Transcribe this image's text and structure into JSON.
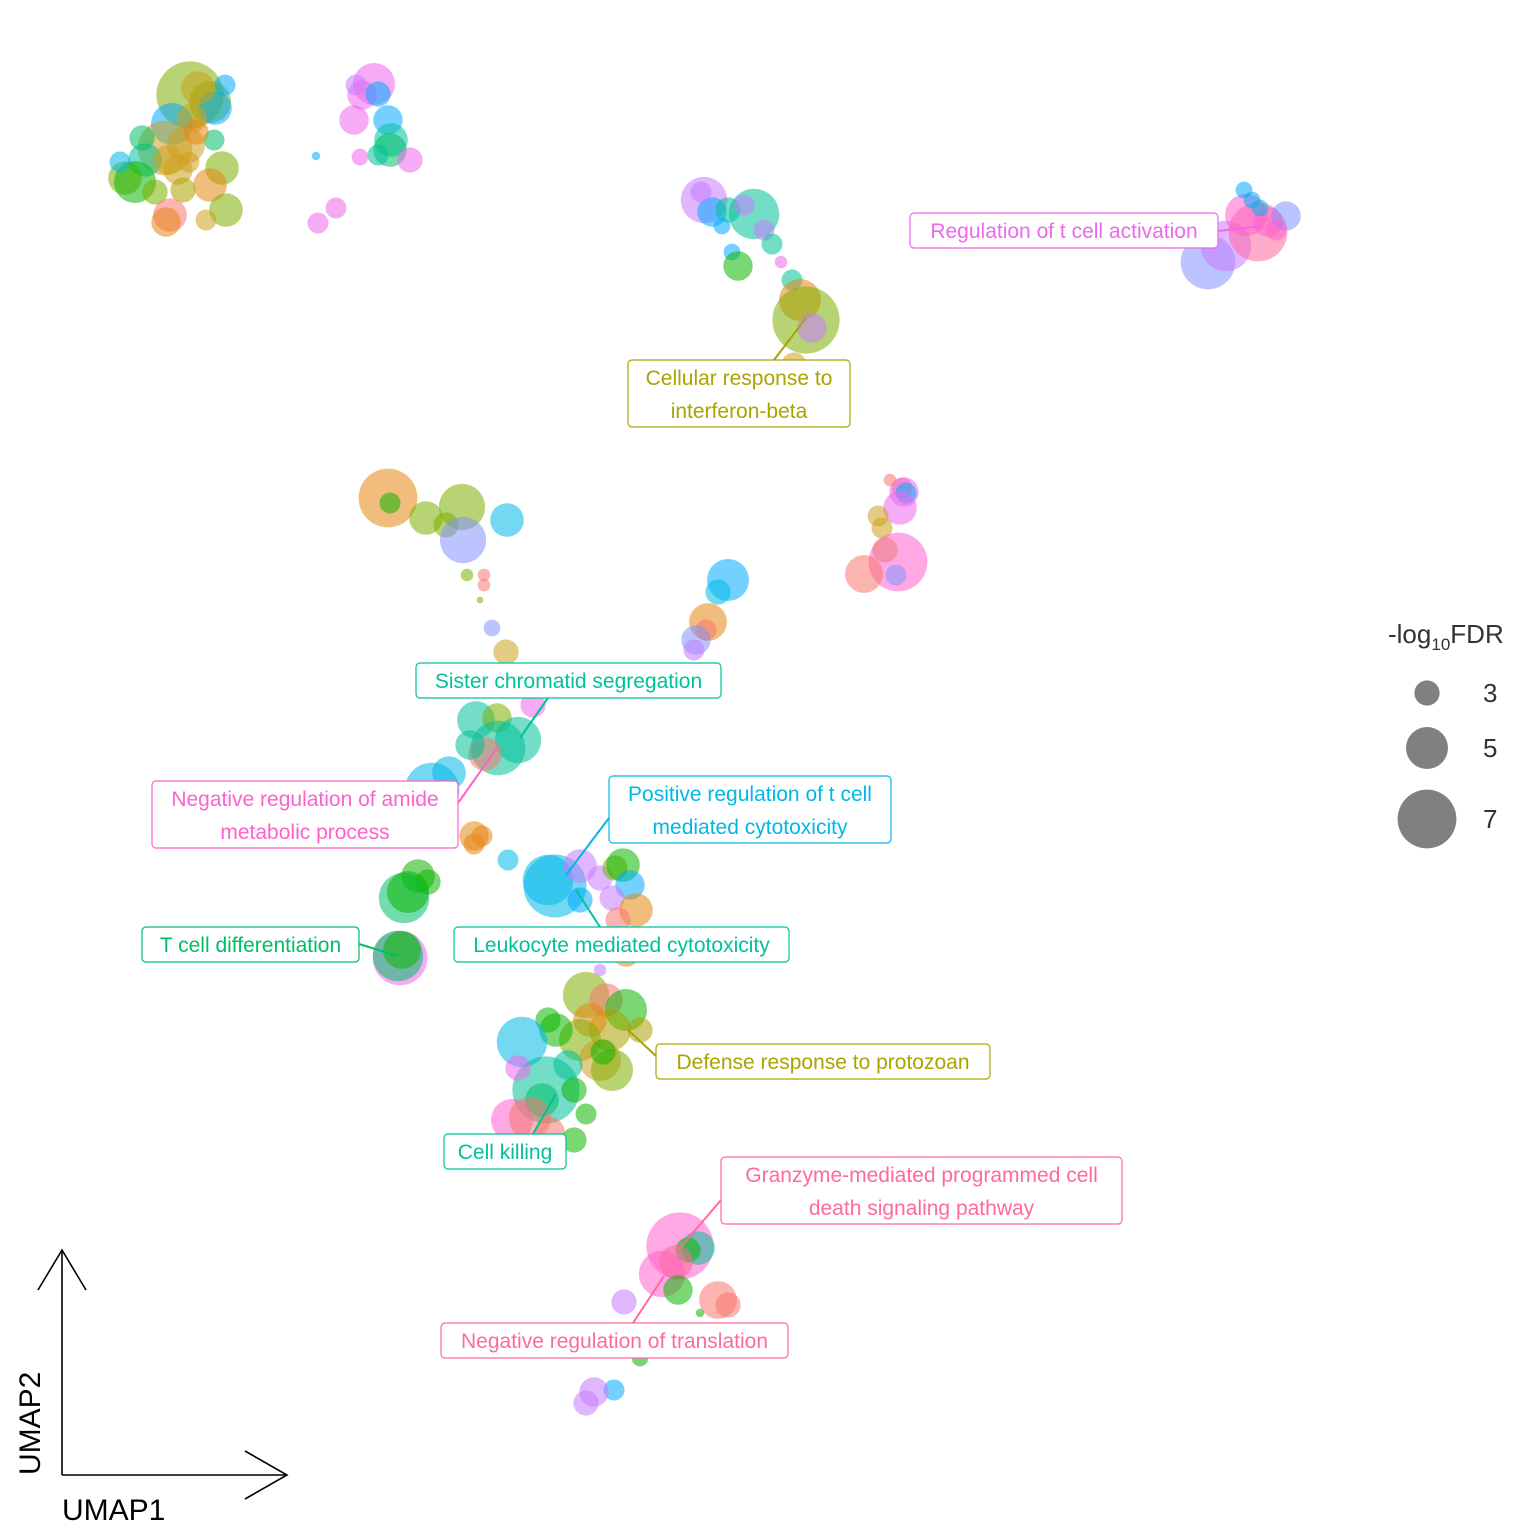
{
  "chart_data": {
    "type": "scatter",
    "xlabel": "UMAP1",
    "ylabel": "UMAP2",
    "grid": false,
    "legend": {
      "title": "-log",
      "title_sub": "10",
      "title_suffix": "FDR",
      "placement": "right",
      "sizes": [
        3,
        5,
        7
      ],
      "size_labels": [
        "3",
        "5",
        "7"
      ],
      "color": "#808080"
    },
    "palette": {
      "orange": "#E68613",
      "gold": "#CDA01E",
      "olive": "#ABA300",
      "lime": "#7CAE00",
      "green": "#0CB702",
      "emerald": "#00BE67",
      "teal": "#00C19A",
      "cyan": "#00B8E7",
      "sky": "#00A9FF",
      "lavender": "#8494FF",
      "purple": "#C77CFF",
      "magenta": "#ED68ED",
      "pink": "#FF61CC",
      "rose": "#FF68A1",
      "salmon": "#F8766D"
    },
    "points": [
      [
        190,
        95,
        8,
        "lime"
      ],
      [
        210,
        102,
        5,
        "lime"
      ],
      [
        215,
        108,
        4,
        "sky"
      ],
      [
        225,
        85,
        2.5,
        "sky"
      ],
      [
        198,
        88,
        4,
        "gold"
      ],
      [
        172,
        124,
        5,
        "sky"
      ],
      [
        192,
        118,
        3.5,
        "gold"
      ],
      [
        214,
        140,
        2.5,
        "emerald"
      ],
      [
        165,
        148,
        6.5,
        "gold"
      ],
      [
        186,
        145,
        4.5,
        "gold"
      ],
      [
        145,
        160,
        4,
        "teal"
      ],
      [
        125,
        178,
        4,
        "lime"
      ],
      [
        135,
        182,
        5,
        "green"
      ],
      [
        120,
        162,
        2.5,
        "cyan"
      ],
      [
        155,
        192,
        3,
        "lime"
      ],
      [
        178,
        170,
        3.5,
        "gold"
      ],
      [
        189,
        162,
        2.5,
        "gold"
      ],
      [
        222,
        168,
        4,
        "lime"
      ],
      [
        210,
        185,
        4,
        "orange"
      ],
      [
        226,
        210,
        4,
        "lime"
      ],
      [
        170,
        215,
        4,
        "salmon"
      ],
      [
        166,
        222,
        3.5,
        "orange"
      ],
      [
        206,
        220,
        2.5,
        "gold"
      ],
      [
        168,
        160,
        3.5,
        "gold"
      ],
      [
        196,
        132,
        3,
        "orange"
      ],
      [
        142,
        138,
        3,
        "emerald"
      ],
      [
        183,
        190,
        3,
        "olive"
      ],
      [
        374,
        84,
        5,
        "magenta"
      ],
      [
        362,
        95,
        3.5,
        "magenta"
      ],
      [
        378,
        94,
        3,
        "sky"
      ],
      [
        356,
        85,
        2.5,
        "purple"
      ],
      [
        388,
        120,
        3.5,
        "sky"
      ],
      [
        391,
        140,
        4,
        "teal"
      ],
      [
        390,
        150,
        4,
        "emerald"
      ],
      [
        354,
        120,
        3.5,
        "magenta"
      ],
      [
        410,
        160,
        3,
        "magenta"
      ],
      [
        378,
        155,
        2.5,
        "teal"
      ],
      [
        360,
        157,
        2,
        "magenta"
      ],
      [
        336,
        208,
        2.5,
        "magenta"
      ],
      [
        318,
        223,
        2.5,
        "magenta"
      ],
      [
        316,
        156,
        1,
        "sky"
      ],
      [
        704,
        200,
        5.5,
        "purple"
      ],
      [
        712,
        212,
        3.5,
        "sky"
      ],
      [
        728,
        210,
        3,
        "teal"
      ],
      [
        754,
        214,
        6,
        "teal"
      ],
      [
        764,
        230,
        2.5,
        "purple"
      ],
      [
        722,
        226,
        2,
        "sky"
      ],
      [
        732,
        252,
        2,
        "sky"
      ],
      [
        738,
        266,
        3.5,
        "green"
      ],
      [
        772,
        244,
        2.5,
        "teal"
      ],
      [
        781,
        262,
        1.5,
        "magenta"
      ],
      [
        792,
        280,
        2.5,
        "teal"
      ],
      [
        800,
        300,
        5,
        "orange"
      ],
      [
        806,
        320,
        8,
        "lime"
      ],
      [
        812,
        328,
        3.5,
        "purple"
      ],
      [
        794,
        365,
        3,
        "gold"
      ],
      [
        800,
        415,
        2.5,
        "olive"
      ],
      [
        701,
        192,
        2.5,
        "purple"
      ],
      [
        744,
        205,
        2.5,
        "purple"
      ],
      [
        1208,
        262,
        6.5,
        "lavender"
      ],
      [
        1226,
        246,
        6,
        "purple"
      ],
      [
        1258,
        232,
        7,
        "rose"
      ],
      [
        1246,
        215,
        5,
        "pink"
      ],
      [
        1268,
        222,
        3.5,
        "pink"
      ],
      [
        1286,
        216,
        3.5,
        "lavender"
      ],
      [
        1244,
        190,
        2,
        "sky"
      ],
      [
        1252,
        200,
        2,
        "sky"
      ],
      [
        1260,
        208,
        2,
        "cyan"
      ],
      [
        1276,
        230,
        2.5,
        "pink"
      ],
      [
        388,
        498,
        7,
        "orange"
      ],
      [
        390,
        503,
        2.5,
        "green"
      ],
      [
        426,
        518,
        4,
        "lime"
      ],
      [
        462,
        507,
        5.5,
        "lime"
      ],
      [
        446,
        525,
        3,
        "lime"
      ],
      [
        463,
        540,
        5.5,
        "lavender"
      ],
      [
        507,
        520,
        4,
        "cyan"
      ],
      [
        467,
        575,
        1.5,
        "lime"
      ],
      [
        484,
        575,
        1.5,
        "salmon"
      ],
      [
        484,
        585,
        1.5,
        "salmon"
      ],
      [
        480,
        600,
        0.8,
        "lime"
      ],
      [
        492,
        628,
        2,
        "lavender"
      ],
      [
        506,
        652,
        3,
        "gold"
      ],
      [
        902,
        488,
        2.5,
        "salmon"
      ],
      [
        904,
        492,
        3.5,
        "magenta"
      ],
      [
        906,
        493,
        2.5,
        "sky"
      ],
      [
        900,
        508,
        4,
        "magenta"
      ],
      [
        878,
        516,
        2.5,
        "gold"
      ],
      [
        882,
        528,
        2.5,
        "gold"
      ],
      [
        885,
        550,
        3,
        "gold"
      ],
      [
        898,
        562,
        7,
        "pink"
      ],
      [
        864,
        574,
        4.5,
        "salmon"
      ],
      [
        896,
        575,
        2.5,
        "lavender"
      ],
      [
        890,
        480,
        1.5,
        "salmon"
      ],
      [
        728,
        580,
        5,
        "sky"
      ],
      [
        718,
        592,
        3,
        "cyan"
      ],
      [
        708,
        622,
        4.5,
        "orange"
      ],
      [
        706,
        630,
        2.5,
        "salmon"
      ],
      [
        696,
        640,
        3.5,
        "lavender"
      ],
      [
        694,
        650,
        2.5,
        "purple"
      ],
      [
        476,
        720,
        4.5,
        "teal"
      ],
      [
        497,
        718,
        3.5,
        "lime"
      ],
      [
        533,
        705,
        3,
        "magenta"
      ],
      [
        518,
        740,
        5.5,
        "teal"
      ],
      [
        498,
        748,
        6.5,
        "teal"
      ],
      [
        485,
        754,
        4,
        "salmon"
      ],
      [
        470,
        745,
        3.5,
        "teal"
      ],
      [
        449,
        773,
        4,
        "cyan"
      ],
      [
        432,
        790,
        6.5,
        "cyan"
      ],
      [
        440,
        805,
        2,
        "cyan"
      ],
      [
        474,
        836,
        3.5,
        "orange"
      ],
      [
        474,
        844,
        2.5,
        "orange"
      ],
      [
        482,
        836,
        2.5,
        "orange"
      ],
      [
        508,
        860,
        2.5,
        "cyan"
      ],
      [
        418,
        876,
        4,
        "green"
      ],
      [
        428,
        882,
        3,
        "green"
      ],
      [
        404,
        898,
        6,
        "emerald"
      ],
      [
        408,
        892,
        5,
        "green"
      ],
      [
        400,
        958,
        6.5,
        "magenta"
      ],
      [
        398,
        956,
        6,
        "emerald"
      ],
      [
        402,
        950,
        4.5,
        "green"
      ],
      [
        555,
        886,
        7.5,
        "cyan"
      ],
      [
        548,
        880,
        6,
        "cyan"
      ],
      [
        580,
        866,
        4,
        "purple"
      ],
      [
        600,
        878,
        3,
        "purple"
      ],
      [
        615,
        868,
        3,
        "lime"
      ],
      [
        623,
        865,
        4,
        "green"
      ],
      [
        630,
        885,
        3.5,
        "sky"
      ],
      [
        612,
        898,
        3,
        "purple"
      ],
      [
        636,
        910,
        4,
        "orange"
      ],
      [
        618,
        920,
        3,
        "salmon"
      ],
      [
        626,
        952,
        3.5,
        "orange"
      ],
      [
        600,
        970,
        1.5,
        "purple"
      ],
      [
        580,
        900,
        3,
        "sky"
      ],
      [
        586,
        995,
        5.5,
        "lime"
      ],
      [
        606,
        1000,
        4,
        "salmon"
      ],
      [
        626,
        1010,
        5,
        "green"
      ],
      [
        610,
        1030,
        5,
        "olive"
      ],
      [
        590,
        1020,
        4,
        "orange"
      ],
      [
        580,
        1040,
        5,
        "lime"
      ],
      [
        556,
        1030,
        4,
        "green"
      ],
      [
        548,
        1020,
        3,
        "green"
      ],
      [
        522,
        1042,
        6,
        "cyan"
      ],
      [
        600,
        1060,
        5,
        "gold"
      ],
      [
        612,
        1070,
        5,
        "lime"
      ],
      [
        568,
        1065,
        3.5,
        "teal"
      ],
      [
        546,
        1090,
        8,
        "teal"
      ],
      [
        542,
        1100,
        4,
        "emerald"
      ],
      [
        574,
        1090,
        3,
        "green"
      ],
      [
        586,
        1114,
        2.5,
        "green"
      ],
      [
        518,
        1068,
        3,
        "magenta"
      ],
      [
        512,
        1120,
        5,
        "pink"
      ],
      [
        530,
        1118,
        5,
        "salmon"
      ],
      [
        550,
        1132,
        3.5,
        "salmon"
      ],
      [
        574,
        1140,
        3,
        "green"
      ],
      [
        640,
        1030,
        3,
        "olive"
      ],
      [
        603,
        1052,
        3,
        "green"
      ],
      [
        680,
        1246,
        8,
        "pink"
      ],
      [
        698,
        1248,
        4,
        "teal"
      ],
      [
        688,
        1250,
        3,
        "green"
      ],
      [
        662,
        1274,
        5.5,
        "pink"
      ],
      [
        676,
        1262,
        4,
        "rose"
      ],
      [
        678,
        1290,
        3.5,
        "green"
      ],
      [
        718,
        1300,
        4.5,
        "salmon"
      ],
      [
        728,
        1305,
        3,
        "salmon"
      ],
      [
        624,
        1302,
        3,
        "purple"
      ],
      [
        636,
        1335,
        2,
        "purple"
      ],
      [
        700,
        1313,
        1,
        "green"
      ],
      [
        640,
        1358,
        2,
        "green"
      ],
      [
        614,
        1390,
        2.5,
        "sky"
      ],
      [
        594,
        1392,
        3.5,
        "purple"
      ],
      [
        586,
        1403,
        3,
        "purple"
      ],
      [
        742,
        1215,
        1.5,
        "salmon"
      ]
    ],
    "labels": [
      {
        "text": [
          "Regulation of t cell activation"
        ],
        "color": "#ED68ED"
      },
      {
        "text": [
          "Cellular response to",
          "interferon-beta"
        ],
        "color": "#ABA300"
      },
      {
        "text": [
          "Sister chromatid segregation"
        ],
        "color": "#00C19A"
      },
      {
        "text": [
          "Negative regulation of amide",
          "metabolic process"
        ],
        "color": "#FF61CC"
      },
      {
        "text": [
          "Positive regulation of t cell",
          "mediated cytotoxicity"
        ],
        "color": "#00B8E7"
      },
      {
        "text": [
          "T cell differentiation"
        ],
        "color": "#00BE67"
      },
      {
        "text": [
          "Leukocyte mediated cytotoxicity"
        ],
        "color": "#00C19A"
      },
      {
        "text": [
          "Defense response to protozoan"
        ],
        "color": "#ABA300"
      },
      {
        "text": [
          "Cell killing"
        ],
        "color": "#00C19A"
      },
      {
        "text": [
          "Granzyme-mediated programmed cell",
          "death signaling pathway"
        ],
        "color": "#FF68A1"
      },
      {
        "text": [
          "Negative regulation of translation"
        ],
        "color": "#FF68A1"
      }
    ]
  }
}
